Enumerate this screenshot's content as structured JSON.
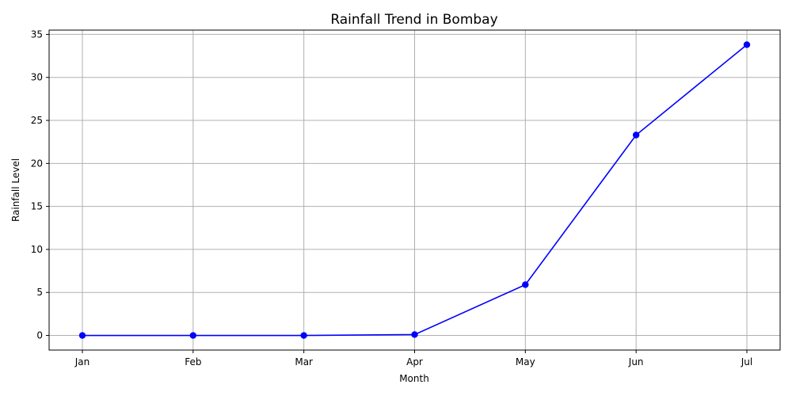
{
  "chart_data": {
    "type": "line",
    "title": "Rainfall Trend in Bombay",
    "xlabel": "Month",
    "ylabel": "Rainfall Level",
    "categories": [
      "Jan",
      "Feb",
      "Mar",
      "Apr",
      "May",
      "Jun",
      "Jul"
    ],
    "values": [
      0.0,
      0.0,
      0.0,
      0.1,
      5.9,
      23.3,
      33.8
    ],
    "ylim": [
      -1.7,
      35.5
    ],
    "yticks": [
      0,
      5,
      10,
      15,
      20,
      25,
      30,
      35
    ],
    "grid": true,
    "line_color": "#0000ff",
    "marker": "circle"
  }
}
